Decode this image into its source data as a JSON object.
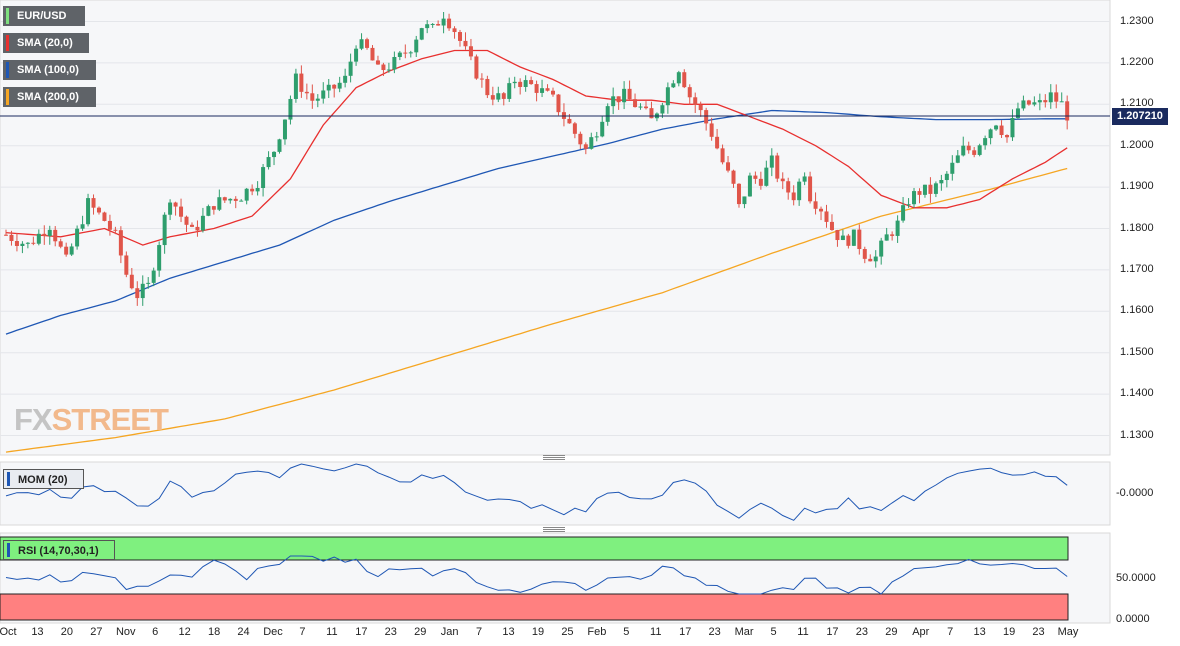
{
  "chart_data": {
    "type": "candlestick",
    "symbol": "EUR/USD",
    "indicators": [
      {
        "name": "SMA (20,0)",
        "color": "#e8302f"
      },
      {
        "name": "SMA (100,0)",
        "color": "#1f57b4"
      },
      {
        "name": "SMA (200,0)",
        "color": "#f5a623"
      }
    ],
    "last_price": "1.207210",
    "price_axis": {
      "ticks": [
        "1.2300",
        "1.2200",
        "1.2100",
        "1.2000",
        "1.1900",
        "1.1800",
        "1.1700",
        "1.1600",
        "1.1500",
        "1.1400",
        "1.1300"
      ],
      "range": [
        1.1255,
        1.2345
      ]
    },
    "x_labels": [
      "Oct",
      "13",
      "20",
      "27",
      "Nov",
      "6",
      "12",
      "18",
      "24",
      "Dec",
      "7",
      "11",
      "17",
      "23",
      "29",
      "Jan",
      "7",
      "13",
      "19",
      "25",
      "Feb",
      "5",
      "11",
      "17",
      "23",
      "Mar",
      "5",
      "11",
      "17",
      "23",
      "29",
      "Apr",
      "7",
      "13",
      "19",
      "23",
      "May"
    ],
    "close_path": [
      [
        0,
        1.1785
      ],
      [
        4,
        1.176
      ],
      [
        8,
        1.181
      ],
      [
        11,
        1.172
      ],
      [
        15,
        1.186
      ],
      [
        18,
        1.182
      ],
      [
        20,
        1.178
      ],
      [
        22,
        1.169
      ],
      [
        24,
        1.164
      ],
      [
        26,
        1.166
      ],
      [
        28,
        1.177
      ],
      [
        30,
        1.188
      ],
      [
        32,
        1.183
      ],
      [
        34,
        1.179
      ],
      [
        38,
        1.186
      ],
      [
        43,
        1.188
      ],
      [
        46,
        1.1915
      ],
      [
        49,
        1.199
      ],
      [
        51,
        1.207
      ],
      [
        53,
        1.216
      ],
      [
        56,
        1.211
      ],
      [
        59,
        1.213
      ],
      [
        62,
        1.216
      ],
      [
        64,
        1.225
      ],
      [
        66,
        1.223
      ],
      [
        68,
        1.218
      ],
      [
        71,
        1.22
      ],
      [
        74,
        1.224
      ],
      [
        76,
        1.229
      ],
      [
        78,
        1.228
      ],
      [
        80,
        1.232
      ],
      [
        82,
        1.228
      ],
      [
        85,
        1.22
      ],
      [
        88,
        1.213
      ],
      [
        91,
        1.211
      ],
      [
        93,
        1.216
      ],
      [
        97,
        1.214
      ],
      [
        100,
        1.211
      ],
      [
        102,
        1.207
      ],
      [
        104,
        1.203
      ],
      [
        106,
        1.199
      ],
      [
        108,
        1.204
      ],
      [
        110,
        1.211
      ],
      [
        113,
        1.212
      ],
      [
        116,
        1.209
      ],
      [
        118,
        1.206
      ],
      [
        121,
        1.214
      ],
      [
        123,
        1.219
      ],
      [
        125,
        1.212
      ],
      [
        127,
        1.208
      ],
      [
        129,
        1.203
      ],
      [
        131,
        1.196
      ],
      [
        133,
        1.19
      ],
      [
        134,
        1.185
      ],
      [
        136,
        1.192
      ],
      [
        138,
        1.192
      ],
      [
        140,
        1.196
      ],
      [
        142,
        1.19
      ],
      [
        144,
        1.188
      ],
      [
        146,
        1.194
      ],
      [
        147,
        1.188
      ],
      [
        149,
        1.185
      ],
      [
        151,
        1.18
      ],
      [
        153,
        1.177
      ],
      [
        155,
        1.178
      ],
      [
        157,
        1.174
      ],
      [
        159,
        1.173
      ],
      [
        161,
        1.178
      ],
      [
        163,
        1.181
      ],
      [
        165,
        1.187
      ],
      [
        167,
        1.189
      ],
      [
        169,
        1.189
      ],
      [
        171,
        1.191
      ],
      [
        173,
        1.195
      ],
      [
        175,
        1.199
      ],
      [
        177,
        1.199
      ],
      [
        179,
        1.203
      ],
      [
        181,
        1.206
      ],
      [
        183,
        1.202
      ],
      [
        185,
        1.209
      ],
      [
        187,
        1.21
      ],
      [
        189,
        1.21
      ],
      [
        191,
        1.212
      ],
      [
        193,
        1.21
      ],
      [
        194,
        1.2075
      ]
    ],
    "sma20": [
      [
        0,
        1.179
      ],
      [
        10,
        1.178
      ],
      [
        18,
        1.18
      ],
      [
        25,
        1.176
      ],
      [
        30,
        1.178
      ],
      [
        38,
        1.18
      ],
      [
        45,
        1.183
      ],
      [
        52,
        1.192
      ],
      [
        58,
        1.205
      ],
      [
        64,
        1.214
      ],
      [
        70,
        1.218
      ],
      [
        76,
        1.221
      ],
      [
        82,
        1.223
      ],
      [
        88,
        1.223
      ],
      [
        94,
        1.219
      ],
      [
        100,
        1.216
      ],
      [
        106,
        1.212
      ],
      [
        112,
        1.211
      ],
      [
        118,
        1.211
      ],
      [
        124,
        1.21
      ],
      [
        130,
        1.21
      ],
      [
        136,
        1.207
      ],
      [
        142,
        1.204
      ],
      [
        148,
        1.2
      ],
      [
        154,
        1.195
      ],
      [
        160,
        1.188
      ],
      [
        166,
        1.185
      ],
      [
        172,
        1.185
      ],
      [
        178,
        1.187
      ],
      [
        184,
        1.192
      ],
      [
        190,
        1.196
      ],
      [
        194,
        1.1995
      ]
    ],
    "sma100": [
      [
        0,
        1.1545
      ],
      [
        10,
        1.159
      ],
      [
        20,
        1.1625
      ],
      [
        30,
        1.168
      ],
      [
        40,
        1.172
      ],
      [
        50,
        1.176
      ],
      [
        60,
        1.182
      ],
      [
        70,
        1.1865
      ],
      [
        80,
        1.1905
      ],
      [
        90,
        1.1945
      ],
      [
        100,
        1.1975
      ],
      [
        110,
        1.2005
      ],
      [
        120,
        1.204
      ],
      [
        130,
        1.2065
      ],
      [
        140,
        1.2085
      ],
      [
        150,
        1.208
      ],
      [
        160,
        1.207
      ],
      [
        170,
        1.2063
      ],
      [
        180,
        1.2063
      ],
      [
        190,
        1.2065
      ],
      [
        194,
        1.2065
      ]
    ],
    "sma200": [
      [
        0,
        1.126
      ],
      [
        20,
        1.1295
      ],
      [
        40,
        1.134
      ],
      [
        60,
        1.141
      ],
      [
        80,
        1.149
      ],
      [
        100,
        1.157
      ],
      [
        120,
        1.1645
      ],
      [
        140,
        1.174
      ],
      [
        160,
        1.183
      ],
      [
        180,
        1.1895
      ],
      [
        194,
        1.1945
      ]
    ],
    "mom_label": "MOM (20)",
    "mom_tick": "-0.0000",
    "rsi_label": "RSI (14,70,30,1)",
    "rsi_tick_mid": "50.0000",
    "rsi_tick_low": "0.0000"
  }
}
